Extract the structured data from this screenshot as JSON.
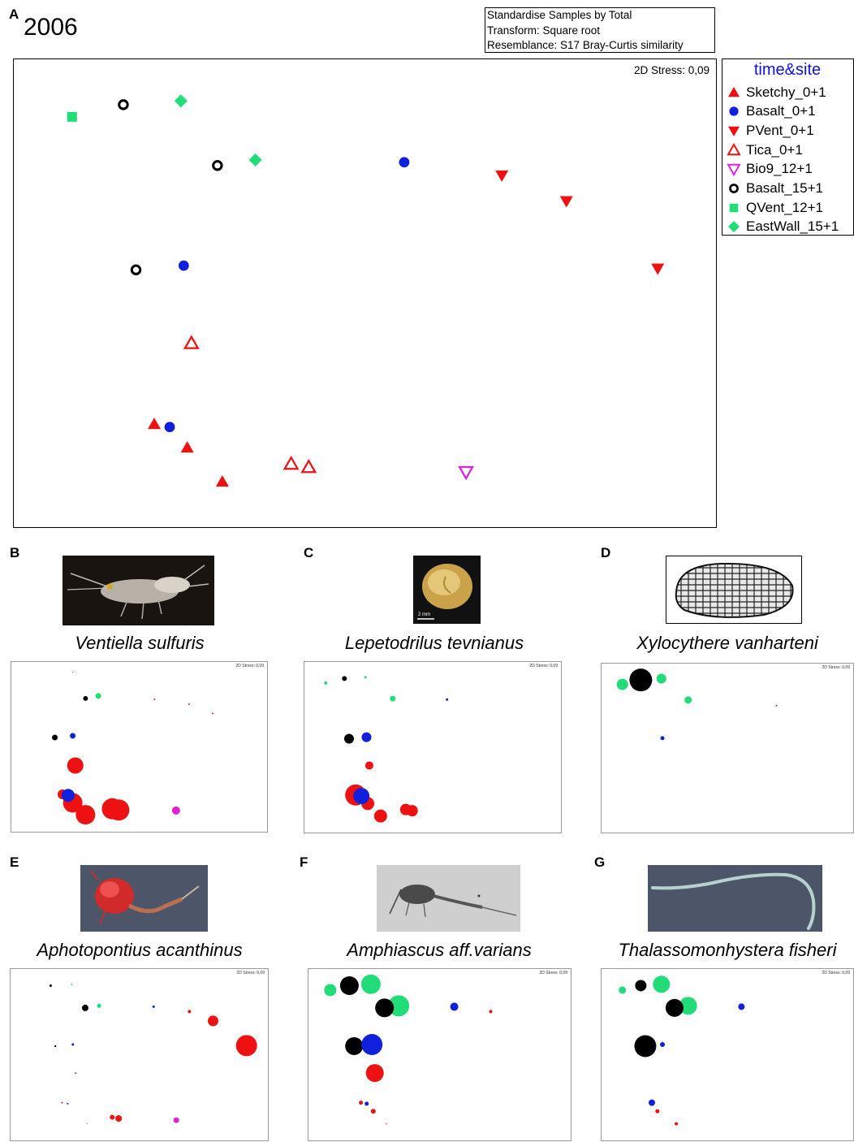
{
  "figure": {
    "main_panel_letter": "A",
    "year": "2006",
    "transform_lines": [
      "Standardise Samples by Total",
      "Transform: Square root",
      "Resemblance: S17 Bray-Curtis similarity"
    ]
  },
  "chart_data": [
    {
      "type": "scatter",
      "panel": "A",
      "stress_label": "2D Stress: 0,09",
      "legend_title": "time&site",
      "legend_placement": "top-right, outside plot",
      "groups": [
        {
          "name": "Sketchy_0+1",
          "marker": "triangle-up-filled",
          "color": "#ee1111"
        },
        {
          "name": "Basalt_0+1",
          "marker": "circle-filled",
          "color": "#1020dd"
        },
        {
          "name": "PVent_0+1",
          "marker": "triangle-down-filled",
          "color": "#ee1111"
        },
        {
          "name": "Tica_0+1",
          "marker": "triangle-up-open",
          "color": "#ee1111"
        },
        {
          "name": "Bio9_12+1",
          "marker": "triangle-down-open",
          "color": "#dd22dd"
        },
        {
          "name": "Basalt_15+1",
          "marker": "circle-open",
          "color": "#000000"
        },
        {
          "name": "QVent_12+1",
          "marker": "square-filled",
          "color": "#22dd77"
        },
        {
          "name": "EastWall_15+1",
          "marker": "diamond-filled",
          "color": "#22dd77"
        }
      ],
      "points": [
        {
          "id": 1,
          "group": "QVent_12+1",
          "x": 0.083,
          "y": 0.877
        },
        {
          "id": 2,
          "group": "Basalt_15+1",
          "x": 0.156,
          "y": 0.903
        },
        {
          "id": 3,
          "group": "EastWall_15+1",
          "x": 0.238,
          "y": 0.911
        },
        {
          "id": 4,
          "group": "Basalt_15+1",
          "x": 0.29,
          "y": 0.773
        },
        {
          "id": 5,
          "group": "EastWall_15+1",
          "x": 0.344,
          "y": 0.785
        },
        {
          "id": 6,
          "group": "Basalt_0+1",
          "x": 0.556,
          "y": 0.78
        },
        {
          "id": 7,
          "group": "PVent_0+1",
          "x": 0.695,
          "y": 0.752
        },
        {
          "id": 8,
          "group": "PVent_0+1",
          "x": 0.787,
          "y": 0.697
        },
        {
          "id": 9,
          "group": "PVent_0+1",
          "x": 0.917,
          "y": 0.553
        },
        {
          "id": 10,
          "group": "Basalt_15+1",
          "x": 0.174,
          "y": 0.55
        },
        {
          "id": 11,
          "group": "Basalt_0+1",
          "x": 0.242,
          "y": 0.559
        },
        {
          "id": 12,
          "group": "Tica_0+1",
          "x": 0.253,
          "y": 0.393
        },
        {
          "id": 13,
          "group": "Sketchy_0+1",
          "x": 0.2,
          "y": 0.22
        },
        {
          "id": 14,
          "group": "Basalt_0+1",
          "x": 0.222,
          "y": 0.214
        },
        {
          "id": 15,
          "group": "Sketchy_0+1",
          "x": 0.247,
          "y": 0.17
        },
        {
          "id": 16,
          "group": "Tica_0+1",
          "x": 0.395,
          "y": 0.135
        },
        {
          "id": 17,
          "group": "Tica_0+1",
          "x": 0.42,
          "y": 0.128
        },
        {
          "id": 18,
          "group": "Bio9_12+1",
          "x": 0.644,
          "y": 0.118
        },
        {
          "id": 19,
          "group": "Sketchy_0+1",
          "x": 0.297,
          "y": 0.097
        }
      ]
    },
    {
      "type": "scatter",
      "panel": "B",
      "species": "Ventiella sulfuris",
      "stress_label": "2D Stress: 0,09",
      "bubbles": [
        {
          "x": 0.24,
          "y": 0.94,
          "size": 0.5,
          "color": "#ee1111"
        },
        {
          "x": 0.29,
          "y": 0.785,
          "size": 3.0,
          "color": "#000000"
        },
        {
          "x": 0.34,
          "y": 0.8,
          "size": 3.5,
          "color": "#22dd77"
        },
        {
          "x": 0.56,
          "y": 0.78,
          "size": 1.0,
          "color": "#ee1111"
        },
        {
          "x": 0.695,
          "y": 0.752,
          "size": 1.0,
          "color": "#ee1111"
        },
        {
          "x": 0.787,
          "y": 0.697,
          "size": 1.0,
          "color": "#ee1111"
        },
        {
          "x": 0.17,
          "y": 0.555,
          "size": 3.5,
          "color": "#000000"
        },
        {
          "x": 0.24,
          "y": 0.565,
          "size": 3.5,
          "color": "#1020dd"
        },
        {
          "x": 0.25,
          "y": 0.39,
          "size": 10.0,
          "color": "#ee1111"
        },
        {
          "x": 0.2,
          "y": 0.22,
          "size": 6.0,
          "color": "#ee1111"
        },
        {
          "x": 0.24,
          "y": 0.17,
          "size": 12.0,
          "color": "#ee1111"
        },
        {
          "x": 0.29,
          "y": 0.1,
          "size": 12.0,
          "color": "#ee1111"
        },
        {
          "x": 0.395,
          "y": 0.135,
          "size": 13.0,
          "color": "#ee1111"
        },
        {
          "x": 0.42,
          "y": 0.128,
          "size": 13.0,
          "color": "#ee1111"
        },
        {
          "x": 0.644,
          "y": 0.125,
          "size": 5.0,
          "color": "#dd22dd"
        },
        {
          "x": 0.222,
          "y": 0.214,
          "size": 8.0,
          "color": "#1020dd"
        }
      ]
    },
    {
      "type": "scatter",
      "panel": "C",
      "species": "Lepetodrilus tevnianus",
      "stress_label": "2D Stress: 0,09",
      "bubbles": [
        {
          "x": 0.083,
          "y": 0.877,
          "size": 2.0,
          "color": "#22dd77"
        },
        {
          "x": 0.156,
          "y": 0.903,
          "size": 3.0,
          "color": "#000000"
        },
        {
          "x": 0.238,
          "y": 0.911,
          "size": 1.5,
          "color": "#22dd77"
        },
        {
          "x": 0.344,
          "y": 0.785,
          "size": 3.5,
          "color": "#22dd77"
        },
        {
          "x": 0.556,
          "y": 0.78,
          "size": 1.5,
          "color": "#1020dd"
        },
        {
          "x": 0.174,
          "y": 0.55,
          "size": 6.0,
          "color": "#000000"
        },
        {
          "x": 0.242,
          "y": 0.559,
          "size": 6.0,
          "color": "#1020dd"
        },
        {
          "x": 0.253,
          "y": 0.393,
          "size": 5.0,
          "color": "#ee1111"
        },
        {
          "x": 0.2,
          "y": 0.22,
          "size": 13.0,
          "color": "#ee1111"
        },
        {
          "x": 0.247,
          "y": 0.17,
          "size": 8.0,
          "color": "#ee1111"
        },
        {
          "x": 0.297,
          "y": 0.097,
          "size": 8.0,
          "color": "#ee1111"
        },
        {
          "x": 0.395,
          "y": 0.135,
          "size": 7.0,
          "color": "#ee1111"
        },
        {
          "x": 0.42,
          "y": 0.128,
          "size": 7.0,
          "color": "#ee1111"
        },
        {
          "x": 0.222,
          "y": 0.214,
          "size": 10.0,
          "color": "#1020dd"
        }
      ]
    },
    {
      "type": "scatter",
      "panel": "D",
      "species": "Xylocythere vanharteni",
      "stress_label": "2D Stress: 0,09",
      "bubbles": [
        {
          "x": 0.083,
          "y": 0.877,
          "size": 7.0,
          "color": "#22dd77"
        },
        {
          "x": 0.156,
          "y": 0.903,
          "size": 14.0,
          "color": "#000000"
        },
        {
          "x": 0.238,
          "y": 0.911,
          "size": 6.0,
          "color": "#22dd77"
        },
        {
          "x": 0.344,
          "y": 0.785,
          "size": 4.5,
          "color": "#22dd77"
        },
        {
          "x": 0.695,
          "y": 0.752,
          "size": 1.0,
          "color": "#ee1111"
        },
        {
          "x": 0.242,
          "y": 0.559,
          "size": 2.5,
          "color": "#1020dd"
        }
      ]
    },
    {
      "type": "scatter",
      "panel": "E",
      "species": "Aphotopontius acanthinus",
      "stress_label": "2D Stress: 0,09",
      "bubbles": [
        {
          "x": 0.156,
          "y": 0.903,
          "size": 1.5,
          "color": "#000000"
        },
        {
          "x": 0.238,
          "y": 0.911,
          "size": 1.0,
          "color": "#22dd77"
        },
        {
          "x": 0.29,
          "y": 0.773,
          "size": 4.0,
          "color": "#000000"
        },
        {
          "x": 0.344,
          "y": 0.785,
          "size": 2.5,
          "color": "#22dd77"
        },
        {
          "x": 0.556,
          "y": 0.78,
          "size": 1.5,
          "color": "#1020dd"
        },
        {
          "x": 0.695,
          "y": 0.752,
          "size": 2.0,
          "color": "#ee1111"
        },
        {
          "x": 0.787,
          "y": 0.697,
          "size": 6.5,
          "color": "#ee1111"
        },
        {
          "x": 0.917,
          "y": 0.553,
          "size": 13.0,
          "color": "#ee1111"
        },
        {
          "x": 0.174,
          "y": 0.55,
          "size": 1.2,
          "color": "#000000"
        },
        {
          "x": 0.242,
          "y": 0.559,
          "size": 1.5,
          "color": "#1020dd"
        },
        {
          "x": 0.253,
          "y": 0.393,
          "size": 1.0,
          "color": "#ee1111"
        },
        {
          "x": 0.2,
          "y": 0.22,
          "size": 1.0,
          "color": "#ee1111"
        },
        {
          "x": 0.222,
          "y": 0.214,
          "size": 1.0,
          "color": "#1020dd"
        },
        {
          "x": 0.297,
          "y": 0.097,
          "size": 0.5,
          "color": "#ee1111"
        },
        {
          "x": 0.395,
          "y": 0.135,
          "size": 3.0,
          "color": "#ee1111"
        },
        {
          "x": 0.42,
          "y": 0.128,
          "size": 4.0,
          "color": "#ee1111"
        },
        {
          "x": 0.644,
          "y": 0.118,
          "size": 3.5,
          "color": "#dd22dd"
        }
      ]
    },
    {
      "type": "scatter",
      "panel": "F",
      "species": "Amphiascus aff.varians",
      "stress_label": "2D Stress: 0,09",
      "bubbles": [
        {
          "x": 0.083,
          "y": 0.877,
          "size": 7.5,
          "color": "#22dd77"
        },
        {
          "x": 0.156,
          "y": 0.903,
          "size": 11.5,
          "color": "#000000"
        },
        {
          "x": 0.238,
          "y": 0.911,
          "size": 12.0,
          "color": "#22dd77"
        },
        {
          "x": 0.344,
          "y": 0.785,
          "size": 13.0,
          "color": "#22dd77"
        },
        {
          "x": 0.29,
          "y": 0.773,
          "size": 11.5,
          "color": "#000000"
        },
        {
          "x": 0.556,
          "y": 0.78,
          "size": 5.0,
          "color": "#1020dd"
        },
        {
          "x": 0.695,
          "y": 0.752,
          "size": 2.0,
          "color": "#ee1111"
        },
        {
          "x": 0.174,
          "y": 0.55,
          "size": 11.0,
          "color": "#000000"
        },
        {
          "x": 0.242,
          "y": 0.559,
          "size": 13.0,
          "color": "#1020dd"
        },
        {
          "x": 0.253,
          "y": 0.393,
          "size": 11.0,
          "color": "#ee1111"
        },
        {
          "x": 0.2,
          "y": 0.22,
          "size": 2.5,
          "color": "#ee1111"
        },
        {
          "x": 0.222,
          "y": 0.214,
          "size": 2.5,
          "color": "#1020dd"
        },
        {
          "x": 0.247,
          "y": 0.17,
          "size": 3.0,
          "color": "#ee1111"
        },
        {
          "x": 0.297,
          "y": 0.097,
          "size": 0.8,
          "color": "#ee1111"
        }
      ]
    },
    {
      "type": "scatter",
      "panel": "G",
      "species": "Thalassomonhystera fisheri",
      "stress_label": "2D Stress: 0,09",
      "bubbles": [
        {
          "x": 0.083,
          "y": 0.877,
          "size": 4.5,
          "color": "#22dd77"
        },
        {
          "x": 0.156,
          "y": 0.903,
          "size": 7.0,
          "color": "#000000"
        },
        {
          "x": 0.238,
          "y": 0.911,
          "size": 10.5,
          "color": "#22dd77"
        },
        {
          "x": 0.344,
          "y": 0.785,
          "size": 11.0,
          "color": "#22dd77"
        },
        {
          "x": 0.29,
          "y": 0.773,
          "size": 11.0,
          "color": "#000000"
        },
        {
          "x": 0.556,
          "y": 0.78,
          "size": 4.0,
          "color": "#1020dd"
        },
        {
          "x": 0.174,
          "y": 0.55,
          "size": 13.5,
          "color": "#000000"
        },
        {
          "x": 0.242,
          "y": 0.559,
          "size": 3.0,
          "color": "#1020dd"
        },
        {
          "x": 0.2,
          "y": 0.22,
          "size": 4.0,
          "color": "#1020dd"
        },
        {
          "x": 0.222,
          "y": 0.17,
          "size": 2.5,
          "color": "#ee1111"
        },
        {
          "x": 0.297,
          "y": 0.097,
          "size": 2.0,
          "color": "#ee1111"
        }
      ]
    }
  ],
  "subpanels": [
    {
      "letter": "B",
      "species": "Ventiella sulfuris",
      "photo": "amphipod-photo",
      "stress": "2D Stress: 0,09"
    },
    {
      "letter": "C",
      "species": "Lepetodrilus tevnianus",
      "photo": "limpet-photo",
      "scale_label": "2 mm",
      "stress": "2D Stress: 0,09"
    },
    {
      "letter": "D",
      "species": "Xylocythere vanharteni",
      "photo": "ostracod-drawing",
      "stress": "2D Stress: 0,09"
    },
    {
      "letter": "E",
      "species": "Aphotopontius acanthinus",
      "photo": "copepod-red-photo",
      "stress": "2D Stress: 0,09"
    },
    {
      "letter": "F",
      "species": "Amphiascus aff.varians",
      "photo": "copepod-gray-photo",
      "stress": "2D Stress: 0,09"
    },
    {
      "letter": "G",
      "species": "Thalassomonhystera fisheri",
      "photo": "nematode-photo",
      "stress": "2D Stress: 0,09"
    }
  ]
}
